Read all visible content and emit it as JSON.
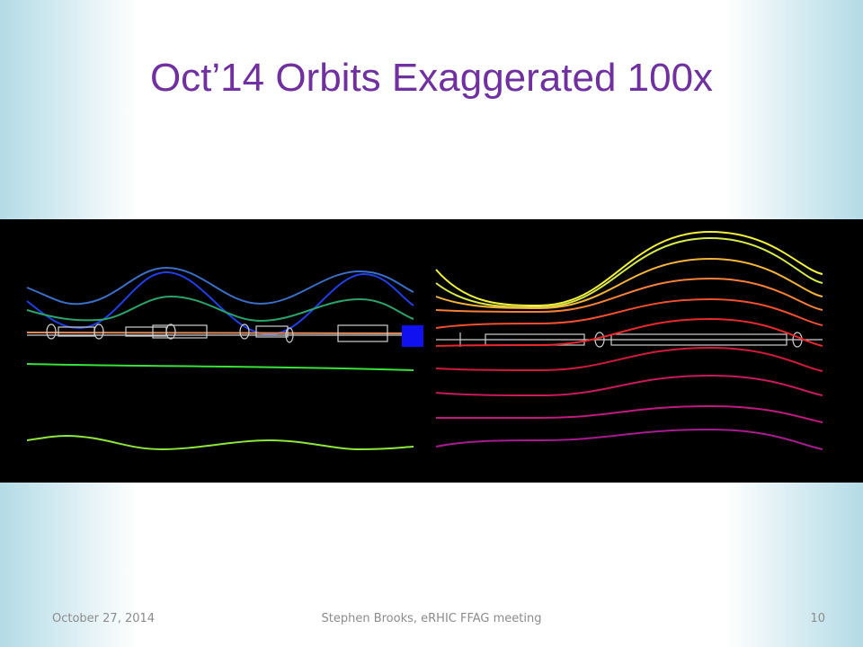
{
  "title": "Oct’14 Orbits Exaggerated 100x",
  "footer": {
    "date": "October 27, 2014",
    "center": "Stephen Brooks, eRHIC FFAG meeting",
    "page_number": "10"
  }
}
